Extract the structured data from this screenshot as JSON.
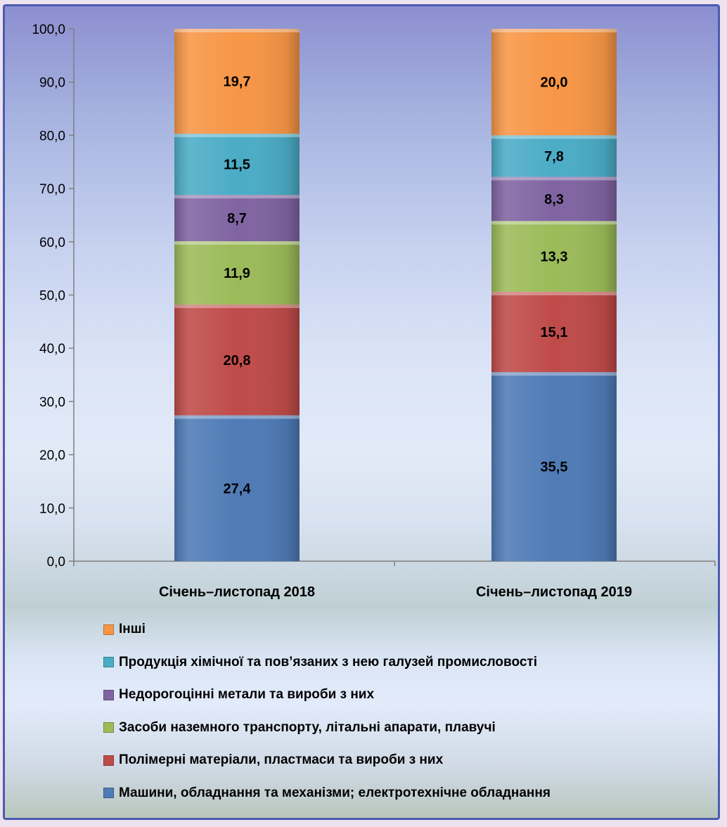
{
  "chart_data": {
    "type": "bar",
    "stacked": true,
    "categories": [
      "Січень–листопад 2018",
      "Січень–листопад 2019"
    ],
    "ylim": [
      0,
      100
    ],
    "yticks": [
      "0,0",
      "10,0",
      "20,0",
      "30,0",
      "40,0",
      "50,0",
      "60,0",
      "70,0",
      "80,0",
      "90,0",
      "100,0"
    ],
    "grid": false,
    "legend_position": "bottom",
    "series": [
      {
        "name": "Машини, обладнання та механізми; електротехнічне обладнання",
        "color": "#4f7bb6",
        "values": [
          27.4,
          35.5
        ],
        "labels": [
          "27,4",
          "35,5"
        ]
      },
      {
        "name": "Полімерні матеріали, пластмаси та вироби з них",
        "color": "#bf4b49",
        "values": [
          20.8,
          15.1
        ],
        "labels": [
          "20,8",
          "15,1"
        ]
      },
      {
        "name": "Засоби наземного транспорту, літальні апарати, плавучі",
        "color": "#9bbb59",
        "values": [
          11.9,
          13.3
        ],
        "labels": [
          "11,9",
          "13,3"
        ]
      },
      {
        "name": "Недорогоцінні метали та вироби з них",
        "color": "#8064a2",
        "values": [
          8.7,
          8.3
        ],
        "labels": [
          "8,7",
          "8,3"
        ]
      },
      {
        "name": "Продукція хімічної та пов’язаних з нею галузей промисловості",
        "color": "#4bacc6",
        "values": [
          11.5,
          7.8
        ],
        "labels": [
          "11,5",
          "7,8"
        ]
      },
      {
        "name": "Інші",
        "color": "#f79646",
        "values": [
          19.7,
          20.0
        ],
        "labels": [
          "19,7",
          "20,0"
        ]
      }
    ]
  },
  "legend_order": [
    5,
    4,
    3,
    2,
    1,
    0
  ]
}
